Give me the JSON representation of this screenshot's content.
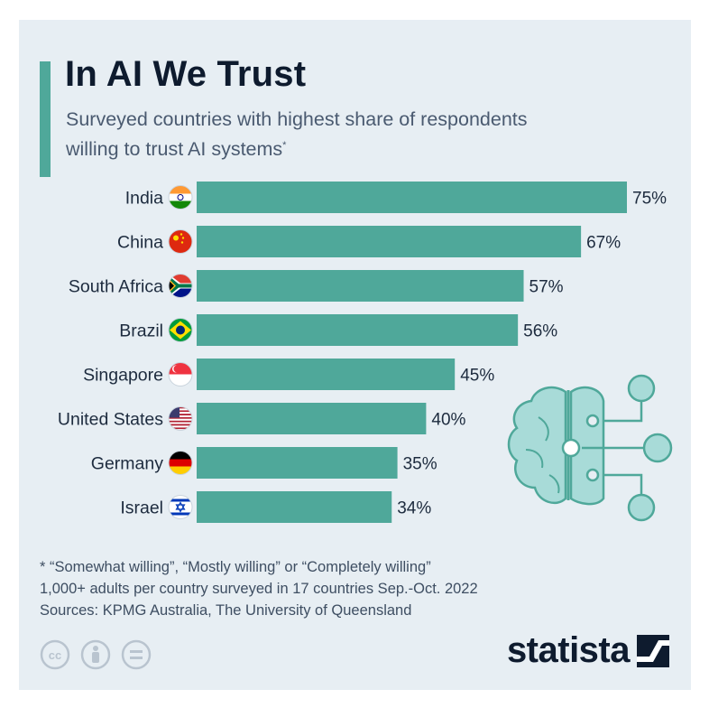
{
  "header": {
    "title": "In AI We Trust",
    "subtitle": "Surveyed countries with highest share of respondents willing to trust AI systems",
    "subtitle_mark": "*"
  },
  "chart_data": {
    "type": "bar",
    "orientation": "horizontal",
    "categories": [
      "India",
      "China",
      "South Africa",
      "Brazil",
      "Singapore",
      "United States",
      "Germany",
      "Israel"
    ],
    "values": [
      75,
      67,
      57,
      56,
      45,
      40,
      35,
      34
    ],
    "value_labels": [
      "75%",
      "67%",
      "57%",
      "56%",
      "45%",
      "40%",
      "35%",
      "34%"
    ],
    "unit": "%",
    "bar_color": "#4fa89a",
    "flag_icons": [
      "flag-india-icon",
      "flag-china-icon",
      "flag-south-africa-icon",
      "flag-brazil-icon",
      "flag-singapore-icon",
      "flag-united-states-icon",
      "flag-germany-icon",
      "flag-israel-icon"
    ],
    "grid": false,
    "legend": "none"
  },
  "illustration": {
    "icon": "ai-brain-circuit-icon",
    "color": "#a8dbd8",
    "stroke": "#4fa89a"
  },
  "footnotes": {
    "line1": "* “Somewhat willing”, “Mostly willing” or “Completely willing”",
    "line2": "1,000+ adults per country surveyed in 17 countries Sep.-Oct. 2022",
    "line3": "Sources: KPMG Australia, The University of Queensland"
  },
  "footer": {
    "license_icons": [
      "creative-commons-icon",
      "attribution-icon",
      "no-derivatives-icon"
    ],
    "brand": "statista",
    "brand_icon": "statista-logo-icon"
  },
  "colors": {
    "background": "#e7eef3",
    "accent": "#4fa89a",
    "title": "#0e1b2e",
    "text": "#1d2b3e"
  }
}
